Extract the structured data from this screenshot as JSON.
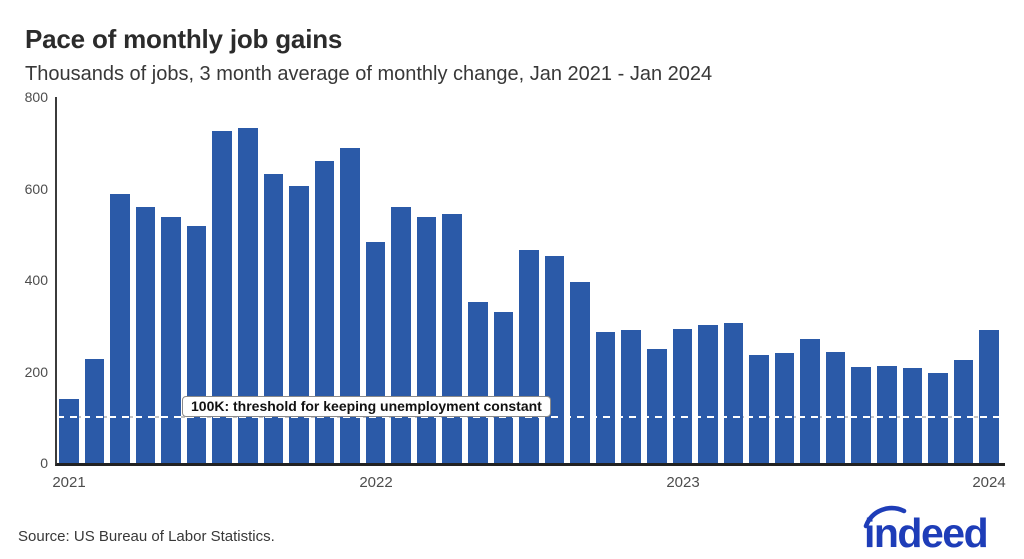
{
  "title": "Pace of monthly job gains",
  "subtitle": "Thousands of jobs, 3 month average of monthly change, Jan 2021 - Jan 2024",
  "source": "Source: US Bureau of Labor Statistics.",
  "logo": {
    "text": "indeed"
  },
  "annotation": {
    "label": "100K: threshold for keeping unemployment constant",
    "value": 100
  },
  "colors": {
    "bar": "#2b5aa8",
    "axis": "#3b3b3b",
    "text_dark": "#2b2b2b",
    "text_gray": "#4d4d4d",
    "threshold_white": "#ffffff",
    "threshold_gray": "#c4c4c4",
    "logo_blue": "#1e3db8"
  },
  "chart_data": {
    "type": "bar",
    "title": "Pace of monthly job gains",
    "subtitle": "Thousands of jobs, 3 month average of monthly change, Jan 2021 - Jan 2024",
    "xlabel": "",
    "ylabel": "Thousands of jobs",
    "ylim": [
      0,
      800
    ],
    "yticks": [
      0,
      200,
      400,
      600,
      800
    ],
    "grid": false,
    "legend": "none",
    "x": [
      "Jan 2021",
      "Feb 2021",
      "Mar 2021",
      "Apr 2021",
      "May 2021",
      "Jun 2021",
      "Jul 2021",
      "Aug 2021",
      "Sep 2021",
      "Oct 2021",
      "Nov 2021",
      "Dec 2021",
      "Jan 2022",
      "Feb 2022",
      "Mar 2022",
      "Apr 2022",
      "May 2022",
      "Jun 2022",
      "Jul 2022",
      "Aug 2022",
      "Sep 2022",
      "Oct 2022",
      "Nov 2022",
      "Dec 2022",
      "Jan 2023",
      "Feb 2023",
      "Mar 2023",
      "Apr 2023",
      "May 2023",
      "Jun 2023",
      "Jul 2023",
      "Aug 2023",
      "Sep 2023",
      "Oct 2023",
      "Nov 2023",
      "Dec 2023",
      "Jan 2024"
    ],
    "values": [
      140,
      228,
      589,
      560,
      538,
      518,
      726,
      732,
      632,
      605,
      660,
      688,
      483,
      560,
      538,
      545,
      351,
      329,
      466,
      452,
      396,
      286,
      291,
      250,
      292,
      301,
      306,
      237,
      241,
      272,
      242,
      210,
      213,
      207,
      197,
      226,
      290
    ],
    "xticks": [
      {
        "index": 0,
        "label": "2021"
      },
      {
        "index": 12,
        "label": "2022"
      },
      {
        "index": 24,
        "label": "2023"
      },
      {
        "index": 36,
        "label": "2024"
      }
    ],
    "threshold": {
      "value": 100,
      "label": "100K: threshold for keeping unemployment constant"
    }
  }
}
